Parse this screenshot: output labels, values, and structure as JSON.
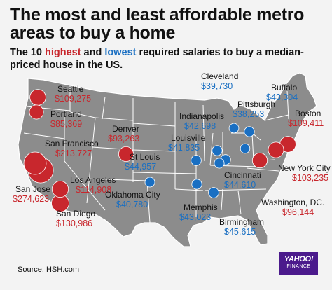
{
  "title": "The most and least affordable metro areas to buy a home",
  "subtitle": {
    "part1": "The 10 ",
    "highest": "highest",
    "part2": " and ",
    "lowest": "lowest",
    "part3": " required salaries to buy a median-priced house in the US."
  },
  "colors": {
    "highest": "#c8272d",
    "lowest": "#1a6fc2",
    "map_fill": "#8c8c8c",
    "borders": "#ffffff",
    "logo_bg": "#4b1a8c"
  },
  "cities": [
    {
      "id": "seattle",
      "name": "Seattle",
      "salary": "$109,275",
      "group": "highest",
      "value": 109275
    },
    {
      "id": "portland",
      "name": "Portland",
      "salary": "$85,369",
      "group": "highest",
      "value": 85369
    },
    {
      "id": "san-francisco",
      "name": "San Francisco",
      "salary": "$213,727",
      "group": "highest",
      "value": 213727
    },
    {
      "id": "san-jose",
      "name": "San Jose",
      "salary": "$274,623",
      "group": "highest",
      "value": 274623
    },
    {
      "id": "los-angeles",
      "name": "Los Angeles",
      "salary": "$114,908",
      "group": "highest",
      "value": 114908
    },
    {
      "id": "san-diego",
      "name": "San Diego",
      "salary": "$130,986",
      "group": "highest",
      "value": 130986
    },
    {
      "id": "denver",
      "name": "Denver",
      "salary": "$93,263",
      "group": "highest",
      "value": 93263
    },
    {
      "id": "boston",
      "name": "Boston",
      "salary": "$109,411",
      "group": "highest",
      "value": 109411
    },
    {
      "id": "new-york-city",
      "name": "New York City",
      "salary": "$103,235",
      "group": "highest",
      "value": 103235
    },
    {
      "id": "washington-dc",
      "name": "Washington, DC.",
      "salary": "$96,144",
      "group": "highest",
      "value": 96144
    },
    {
      "id": "cleveland",
      "name": "Cleveland",
      "salary": "$39,730",
      "group": "lowest",
      "value": 39730
    },
    {
      "id": "buffalo",
      "name": "Buffalo",
      "salary": "$43,304",
      "group": "lowest",
      "value": 43304
    },
    {
      "id": "pittsburgh",
      "name": "Pittsburgh",
      "salary": "$38,253",
      "group": "lowest",
      "value": 38253
    },
    {
      "id": "indianapolis",
      "name": "Indianapolis",
      "salary": "$42,698",
      "group": "lowest",
      "value": 42698
    },
    {
      "id": "louisville",
      "name": "Louisville",
      "salary": "$41,835",
      "group": "lowest",
      "value": 41835
    },
    {
      "id": "st-louis",
      "name": "St Louis",
      "salary": "$44,957",
      "group": "lowest",
      "value": 44957
    },
    {
      "id": "cincinnati",
      "name": "Cincinnati",
      "salary": "$44,610",
      "group": "lowest",
      "value": 44610
    },
    {
      "id": "oklahoma-city",
      "name": "Oklahoma City",
      "salary": "$40,780",
      "group": "lowest",
      "value": 40780
    },
    {
      "id": "memphis",
      "name": "Memphis",
      "salary": "$43,023",
      "group": "lowest",
      "value": 43023
    },
    {
      "id": "birmingham",
      "name": "Birmingham",
      "salary": "$45,615",
      "group": "lowest",
      "value": 45615
    }
  ],
  "source": "Source: HSH.com",
  "logo": {
    "line1": "YAHOO!",
    "line2": "FINANCE"
  }
}
